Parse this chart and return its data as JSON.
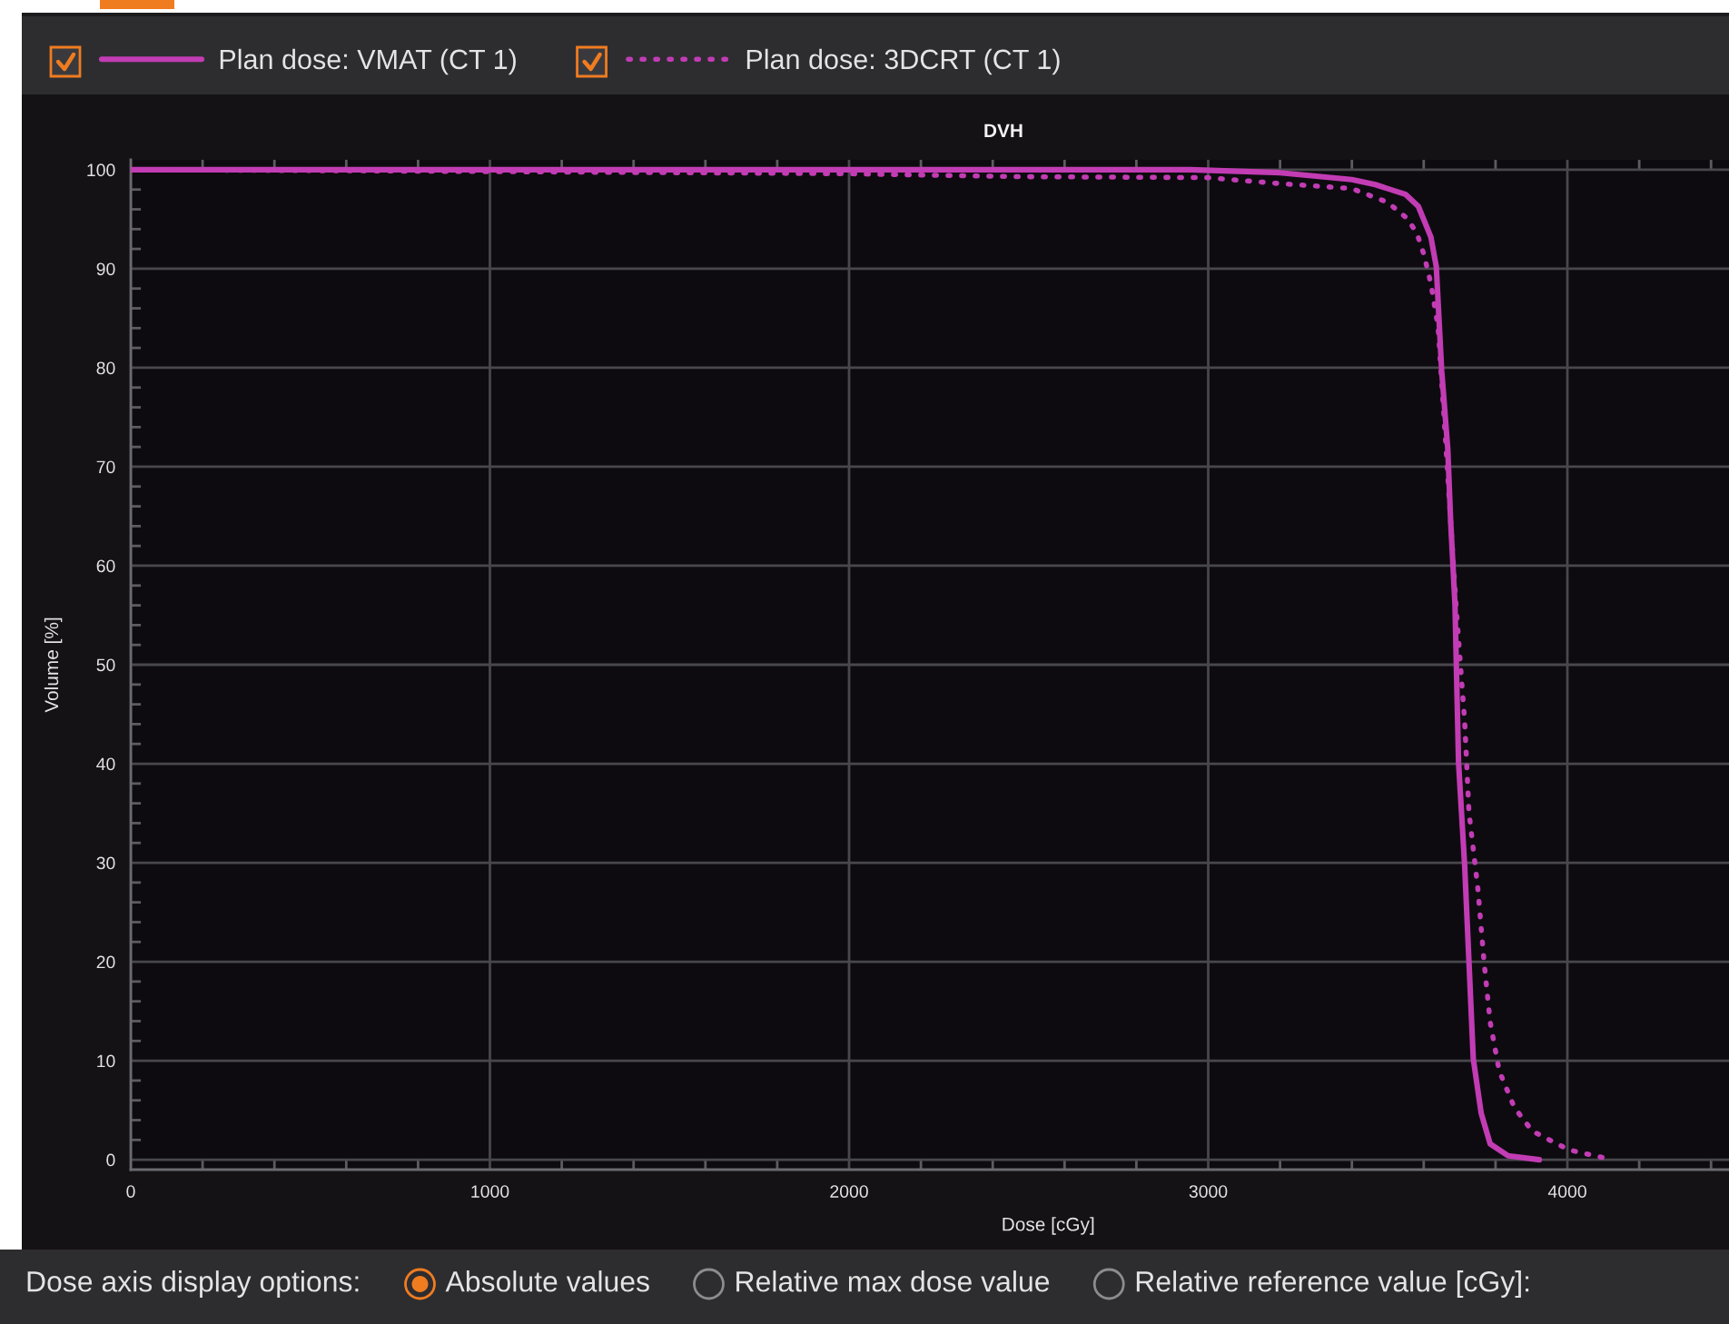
{
  "chart_data": {
    "type": "line",
    "title": "DVH",
    "xlabel": "Dose [cGy]",
    "ylabel": "Volume [%]",
    "xlim": [
      0,
      4450
    ],
    "ylim": [
      -1,
      101
    ],
    "xticks": [
      0,
      {
        "value": 200,
        "label": null
      },
      {
        "value": 400,
        "label": null
      },
      {
        "value": 600,
        "label": null
      },
      {
        "value": 800,
        "label": null
      },
      1000,
      {
        "value": 1200,
        "label": null
      },
      {
        "value": 1400,
        "label": null
      },
      {
        "value": 1600,
        "label": null
      },
      {
        "value": 1800,
        "label": null
      },
      2000,
      {
        "value": 2200,
        "label": null
      },
      {
        "value": 2400,
        "label": null
      },
      {
        "value": 2600,
        "label": null
      },
      {
        "value": 2800,
        "label": null
      },
      3000,
      {
        "value": 3200,
        "label": null
      },
      {
        "value": 3400,
        "label": null
      },
      {
        "value": 3600,
        "label": null
      },
      {
        "value": 3800,
        "label": null
      },
      4000,
      {
        "value": 4200,
        "label": null
      },
      {
        "value": 4400,
        "label": null
      }
    ],
    "yticks": [
      0,
      {
        "value": 2,
        "label": null
      },
      {
        "value": 4,
        "label": null
      },
      {
        "value": 6,
        "label": null
      },
      {
        "value": 8,
        "label": null
      },
      10,
      {
        "value": 12,
        "label": null
      },
      {
        "value": 14,
        "label": null
      },
      {
        "value": 16,
        "label": null
      },
      {
        "value": 18,
        "label": null
      },
      20,
      {
        "value": 22,
        "label": null
      },
      {
        "value": 24,
        "label": null
      },
      {
        "value": 26,
        "label": null
      },
      {
        "value": 28,
        "label": null
      },
      30,
      {
        "value": 32,
        "label": null
      },
      {
        "value": 34,
        "label": null
      },
      {
        "value": 36,
        "label": null
      },
      {
        "value": 38,
        "label": null
      },
      40,
      {
        "value": 42,
        "label": null
      },
      {
        "value": 44,
        "label": null
      },
      {
        "value": 46,
        "label": null
      },
      {
        "value": 48,
        "label": null
      },
      50,
      {
        "value": 52,
        "label": null
      },
      {
        "value": 54,
        "label": null
      },
      {
        "value": 56,
        "label": null
      },
      {
        "value": 58,
        "label": null
      },
      60,
      {
        "value": 62,
        "label": null
      },
      {
        "value": 64,
        "label": null
      },
      {
        "value": 66,
        "label": null
      },
      {
        "value": 68,
        "label": null
      },
      70,
      {
        "value": 72,
        "label": null
      },
      {
        "value": 74,
        "label": null
      },
      {
        "value": 76,
        "label": null
      },
      {
        "value": 78,
        "label": null
      },
      80,
      {
        "value": 82,
        "label": null
      },
      {
        "value": 84,
        "label": null
      },
      {
        "value": 86,
        "label": null
      },
      {
        "value": 88,
        "label": null
      },
      90,
      {
        "value": 92,
        "label": null
      },
      {
        "value": 94,
        "label": null
      },
      {
        "value": 96,
        "label": null
      },
      {
        "value": 98,
        "label": null
      },
      100
    ],
    "grid": true,
    "legend": "top left",
    "series": [
      {
        "name": "Plan dose: VMAT (CT 1)",
        "color": "#c23cb4",
        "line_style": "solid",
        "x": [
          0,
          2950,
          3200,
          3400,
          3465,
          3550,
          3585,
          3620,
          3635,
          3650,
          3667,
          3675,
          3687,
          3697,
          3714,
          3726,
          3738,
          3760,
          3785,
          3835,
          3922
        ],
        "values": [
          100,
          100,
          99.7,
          99.0,
          98.5,
          97.5,
          96.3,
          93.2,
          90.2,
          79.7,
          71.8,
          64.5,
          56.1,
          40.1,
          29.7,
          20.0,
          10.2,
          4.7,
          1.6,
          0.4,
          0
        ]
      },
      {
        "name": "Plan dose: 3DCRT (CT 1)",
        "color": "#c23cb4",
        "line_style": "dotted",
        "x": [
          0,
          600,
          2000,
          2470,
          3000,
          3200,
          3400,
          3500,
          3550,
          3580,
          3600,
          3620,
          3640,
          3660,
          3675,
          3690,
          3714,
          3726,
          3751,
          3768,
          3785,
          3810,
          3852,
          3902,
          4004,
          4113
        ],
        "values": [
          100,
          99.9,
          99.6,
          99.3,
          99.2,
          98.6,
          98.1,
          96.7,
          95.2,
          93.7,
          91.5,
          88.5,
          84.1,
          73.1,
          64.5,
          56.0,
          44.3,
          35.1,
          27.3,
          20.0,
          13.9,
          9.0,
          5.3,
          2.9,
          1.0,
          0.1
        ]
      }
    ],
    "annotations": [
      "Dose axis display options:",
      "Absolute values",
      "Relative max dose value",
      "Relative reference value [cGy]:"
    ]
  }
}
